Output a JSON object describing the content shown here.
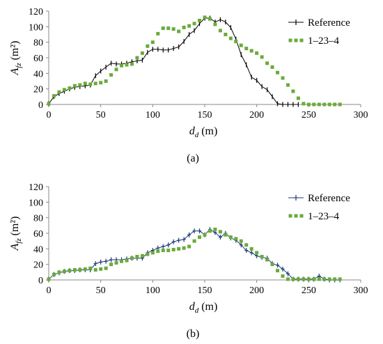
{
  "colors": {
    "reference_a": "#000000",
    "reference_b": "#1f3a7a",
    "series_1_23_4": "#6aaa3a",
    "axis": "#888888"
  },
  "chart_data": [
    {
      "type": "line",
      "caption": "(a)",
      "xlabel_main": "d",
      "xlabel_sub": "d",
      "xlabel_unit": "(m)",
      "ylabel_main": "A",
      "ylabel_sub": "fz",
      "ylabel_unit": "(m²)",
      "xlim": [
        0,
        300
      ],
      "ylim": [
        0,
        120
      ],
      "xticks": [
        0,
        50,
        100,
        150,
        200,
        250,
        300
      ],
      "yticks": [
        0,
        20,
        40,
        60,
        80,
        100,
        120
      ],
      "grid": false,
      "legend_position": "top-right",
      "series": [
        {
          "name": "Reference",
          "x": [
            0,
            5,
            10,
            15,
            20,
            25,
            30,
            35,
            40,
            45,
            50,
            55,
            60,
            65,
            70,
            75,
            80,
            85,
            90,
            95,
            100,
            105,
            110,
            115,
            120,
            125,
            130,
            135,
            140,
            145,
            150,
            155,
            160,
            165,
            170,
            175,
            180,
            185,
            190,
            195,
            200,
            205,
            210,
            215,
            220,
            225,
            230,
            235,
            240
          ],
          "y": [
            1,
            10,
            14,
            17,
            20,
            22,
            23,
            24,
            25,
            37,
            43,
            48,
            53,
            52,
            52,
            53,
            55,
            56,
            57,
            67,
            71,
            71,
            70,
            70,
            72,
            74,
            81,
            90,
            95,
            104,
            111,
            111,
            106,
            109,
            106,
            99,
            84,
            64,
            51,
            35,
            31,
            23,
            19,
            10,
            1,
            0,
            0,
            0,
            0
          ]
        },
        {
          "name": "1–23–4",
          "x": [
            0,
            5,
            10,
            15,
            20,
            25,
            30,
            35,
            40,
            45,
            50,
            55,
            60,
            65,
            70,
            75,
            80,
            85,
            90,
            95,
            100,
            105,
            110,
            115,
            120,
            125,
            130,
            135,
            140,
            145,
            150,
            155,
            160,
            165,
            170,
            175,
            180,
            185,
            190,
            195,
            200,
            205,
            210,
            215,
            220,
            225,
            230,
            235,
            240,
            245,
            250,
            255,
            260,
            265,
            270,
            275,
            280
          ],
          "y": [
            1,
            11,
            16,
            19,
            21,
            24,
            25,
            27,
            26,
            27,
            28,
            30,
            38,
            45,
            50,
            51,
            52,
            60,
            66,
            75,
            80,
            91,
            98,
            98,
            97,
            94,
            99,
            101,
            104,
            108,
            112,
            110,
            103,
            95,
            90,
            85,
            81,
            76,
            72,
            69,
            66,
            61,
            53,
            48,
            41,
            34,
            25,
            17,
            8,
            1,
            0,
            0,
            0,
            0,
            0,
            0,
            0
          ]
        }
      ]
    },
    {
      "type": "line",
      "caption": "(b)",
      "xlabel_main": "d",
      "xlabel_sub": "d",
      "xlabel_unit": "(m)",
      "ylabel_main": "A",
      "ylabel_sub": "fz",
      "ylabel_unit": "(m²)",
      "xlim": [
        0,
        300
      ],
      "ylim": [
        0,
        120
      ],
      "xticks": [
        0,
        50,
        100,
        150,
        200,
        250,
        300
      ],
      "yticks": [
        0,
        20,
        40,
        60,
        80,
        100,
        120
      ],
      "grid": false,
      "legend_position": "top-right",
      "series": [
        {
          "name": "Reference",
          "x": [
            0,
            5,
            10,
            15,
            20,
            25,
            30,
            35,
            40,
            45,
            50,
            55,
            60,
            65,
            70,
            75,
            80,
            85,
            90,
            95,
            100,
            105,
            110,
            115,
            120,
            125,
            130,
            135,
            140,
            145,
            150,
            155,
            160,
            165,
            170,
            175,
            180,
            185,
            190,
            195,
            200,
            205,
            210,
            215,
            220,
            225,
            230,
            235,
            240,
            245,
            250,
            255,
            260,
            265,
            270,
            275,
            280
          ],
          "y": [
            1,
            7,
            9,
            11,
            12,
            12,
            13,
            13,
            13,
            21,
            23,
            24,
            26,
            26,
            26,
            27,
            28,
            28,
            28,
            35,
            38,
            41,
            43,
            45,
            49,
            51,
            52,
            58,
            63,
            63,
            58,
            65,
            61,
            55,
            60,
            54,
            51,
            45,
            38,
            35,
            31,
            29,
            28,
            21,
            19,
            14,
            8,
            1,
            1,
            1,
            1,
            1,
            5,
            1,
            0,
            0,
            0
          ]
        },
        {
          "name": "1–23–4",
          "x": [
            0,
            5,
            10,
            15,
            20,
            25,
            30,
            35,
            40,
            45,
            50,
            55,
            60,
            65,
            70,
            75,
            80,
            85,
            90,
            95,
            100,
            105,
            110,
            115,
            120,
            125,
            130,
            135,
            140,
            145,
            150,
            155,
            160,
            165,
            170,
            175,
            180,
            185,
            190,
            195,
            200,
            205,
            210,
            215,
            220,
            225,
            230,
            235,
            240,
            245,
            250,
            255,
            260,
            265,
            270,
            275,
            280
          ],
          "y": [
            1,
            7,
            10,
            11,
            12,
            13,
            13,
            14,
            15,
            13,
            14,
            15,
            20,
            22,
            24,
            25,
            28,
            30,
            31,
            33,
            35,
            37,
            38,
            38,
            39,
            40,
            41,
            43,
            50,
            55,
            58,
            63,
            65,
            62,
            58,
            55,
            53,
            50,
            45,
            40,
            35,
            30,
            26,
            20,
            12,
            5,
            1,
            1,
            1,
            1,
            1,
            1,
            1,
            1,
            1,
            1,
            1
          ]
        }
      ]
    }
  ]
}
